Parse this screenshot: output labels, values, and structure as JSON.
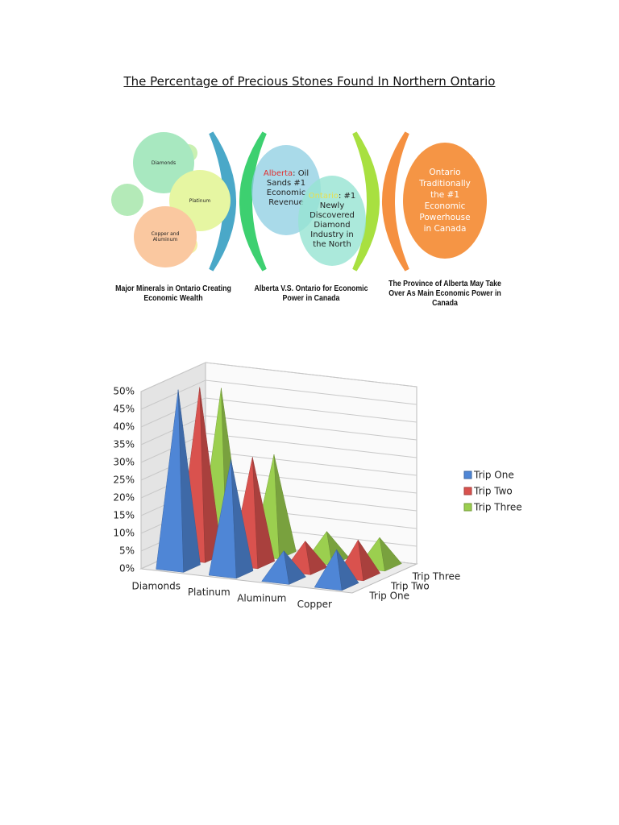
{
  "title": "The Percentage of Precious Stones Found In Northern Ontario",
  "diagram": {
    "minerals": {
      "circles": [
        "Diamonds",
        "Platinum",
        "Copper and Aluminum"
      ],
      "caption": "Major Minerals in Ontario Creating Economic Wealth"
    },
    "comparison": {
      "alberta": {
        "label": "Alberta",
        "text": ": Oil Sands #1 Economic Revenue"
      },
      "ontario": {
        "label": "Ontario",
        "text": ": #1 Newly Discovered Diamond Industry in the North"
      },
      "caption": "Alberta V.S. Ontario for Economic Power in Canada"
    },
    "outlook": {
      "circle": "Ontario Traditionally the #1 Economic Powerhouse in Canada",
      "caption": "The Province of Alberta May Take Over As Main Economic Power in Canada"
    }
  },
  "chart_data": {
    "type": "pyramid3d",
    "categories": [
      "Diamonds",
      "Platinum",
      "Aluminum",
      "Copper"
    ],
    "series": [
      {
        "name": "Trip One",
        "color": "#4f86d6",
        "values": [
          50,
          32,
          8,
          10
        ]
      },
      {
        "name": "Trip Two",
        "color": "#d9524e",
        "values": [
          48,
          30,
          8,
          10
        ]
      },
      {
        "name": "Trip Three",
        "color": "#9bcf4f",
        "values": [
          45,
          28,
          8,
          8
        ]
      }
    ],
    "ylim": [
      0,
      50
    ],
    "yticks": [
      {
        "value": 0,
        "label": "0%"
      },
      {
        "value": 5,
        "label": "5%"
      },
      {
        "value": 10,
        "label": "10%"
      },
      {
        "value": 15,
        "label": "15%"
      },
      {
        "value": 20,
        "label": "20%"
      },
      {
        "value": 25,
        "label": "25%"
      },
      {
        "value": 30,
        "label": "30%"
      },
      {
        "value": 35,
        "label": "35%"
      },
      {
        "value": 40,
        "label": "40%"
      },
      {
        "value": 45,
        "label": "45%"
      },
      {
        "value": 50,
        "label": "50%"
      }
    ],
    "grid": true,
    "legend": "right"
  }
}
